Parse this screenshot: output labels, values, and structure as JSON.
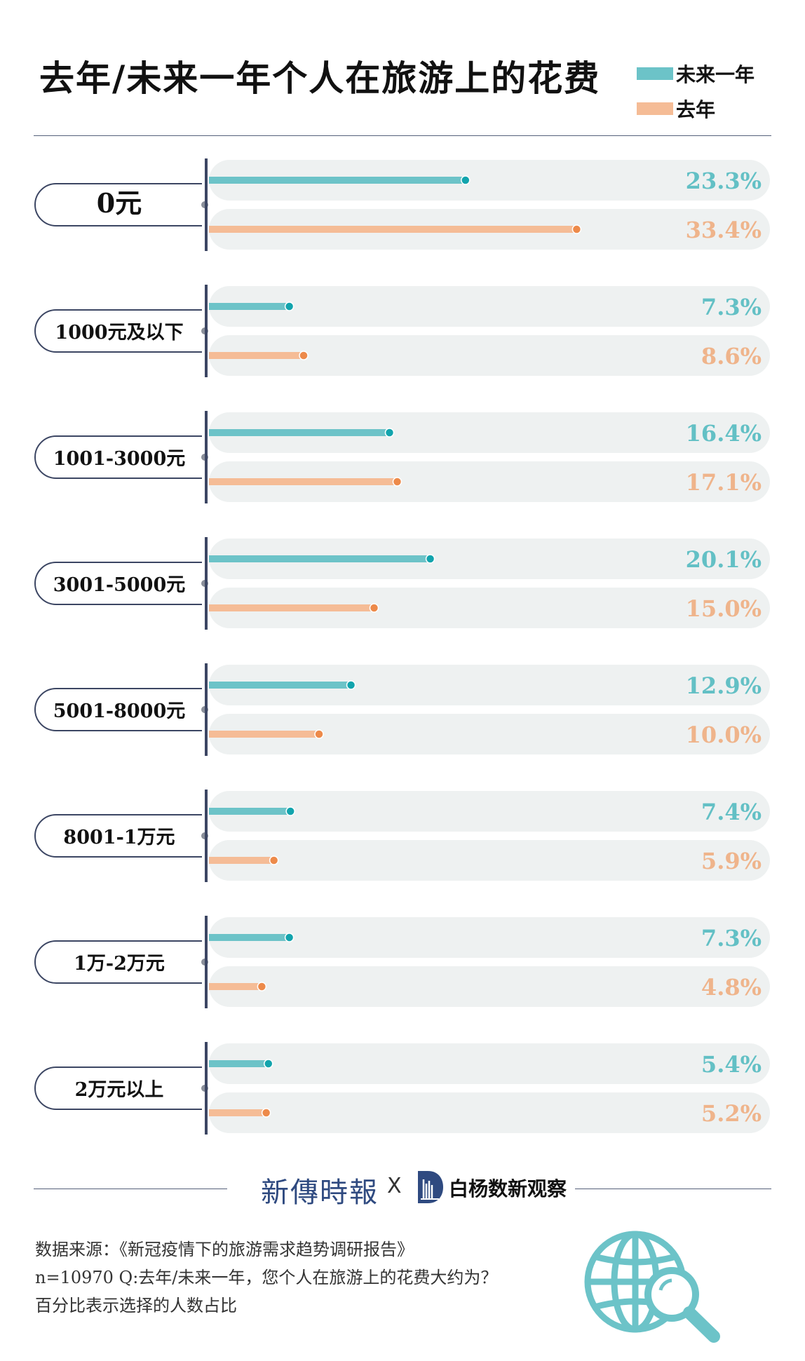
{
  "title": "去年/未来一年个人在旅游上的花费",
  "legend": [
    {
      "label": "未来一年",
      "color": "#6cc3c8"
    },
    {
      "label": "去年",
      "color": "#f5bc96"
    }
  ],
  "colors": {
    "next_bar": "#6cc3c8",
    "next_dot": "#12a4ad",
    "next_text": "#63c0c5",
    "last_bar": "#f5bc96",
    "last_dot": "#ed8a4a",
    "last_text": "#efb48b",
    "track": "#eef1f1",
    "axis": "#3c4663"
  },
  "chart_data": {
    "type": "bar",
    "orientation": "horizontal",
    "categories": [
      "0元",
      "1000元及以下",
      "1001-3000元",
      "3001-5000元",
      "5001-8000元",
      "8001-1万元",
      "1万-2万元",
      "2万元以上"
    ],
    "series": [
      {
        "name": "未来一年",
        "values": [
          23.3,
          7.3,
          16.4,
          20.1,
          12.9,
          7.4,
          7.3,
          5.4
        ]
      },
      {
        "name": "去年",
        "values": [
          33.4,
          8.6,
          17.1,
          15.0,
          10.0,
          5.9,
          4.8,
          5.2
        ]
      }
    ],
    "value_labels": [
      [
        "23.3%",
        "33.4%"
      ],
      [
        "7.3%",
        "8.6%"
      ],
      [
        "16.4%",
        "17.1%"
      ],
      [
        "20.1%",
        "15.0%"
      ],
      [
        "12.9%",
        "10.0%"
      ],
      [
        "7.4%",
        "5.9%"
      ],
      [
        "7.3%",
        "4.8%"
      ],
      [
        "5.4%",
        "5.2%"
      ]
    ],
    "unit": "%"
  },
  "brands": {
    "left": "新傳時報",
    "separator": "X",
    "right": "白杨数新观察"
  },
  "notes": [
    "数据来源：《新冠疫情下的旅游需求趋势调研报告》",
    "n=10970 Q:去年/未来一年，您个人在旅游上的花费大约为？",
    "百分比表示选择的人数占比"
  ],
  "icons": {
    "globe": "globe-search-icon",
    "brand_logo": "d-logo-icon"
  }
}
